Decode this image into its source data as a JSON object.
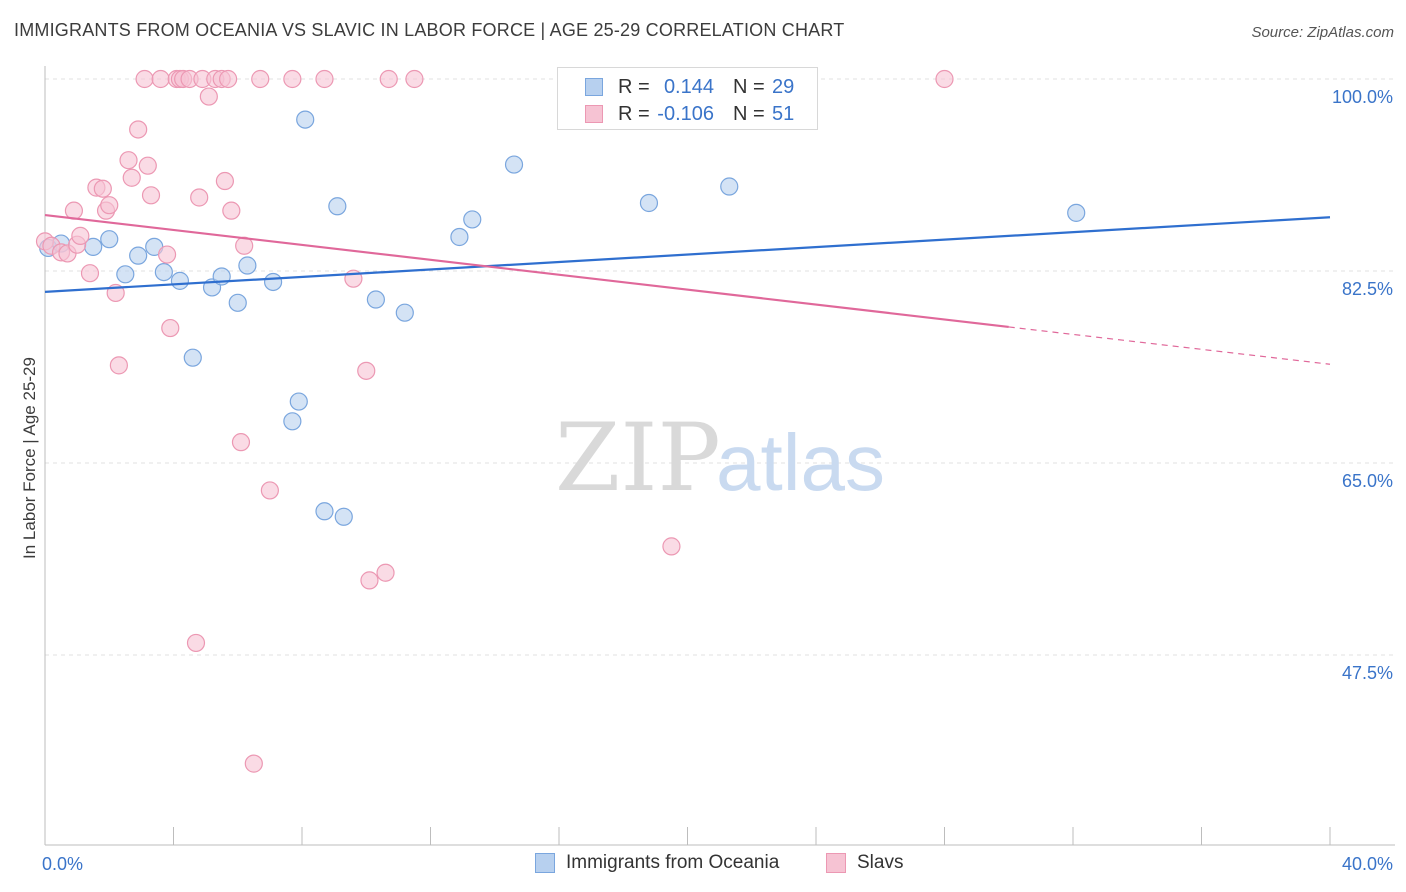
{
  "title": "IMMIGRANTS FROM OCEANIA VS SLAVIC IN LABOR FORCE | AGE 25-29 CORRELATION CHART",
  "source": "Source: ZipAtlas.com",
  "watermark": {
    "zip": "ZIP",
    "atlas": "atlas"
  },
  "colors": {
    "blue_fill": "#b7d0ef",
    "blue_stroke": "#7aa6de",
    "blue_line": "#2f6fcf",
    "pink_fill": "#f6c3d3",
    "pink_stroke": "#ec98b3",
    "pink_line": "#e0689a",
    "axis_text": "#3a74c9",
    "grid": "#e0e0e0"
  },
  "legend": {
    "rows": [
      {
        "r_label": "R =",
        "r_value": "0.144",
        "n_label": "N =",
        "n_value": "29"
      },
      {
        "r_label": "R =",
        "r_value": "-0.106",
        "n_label": "N =",
        "n_value": "51"
      }
    ]
  },
  "bottom_legend": [
    {
      "label": "Immigrants from Oceania"
    },
    {
      "label": "Slavs"
    }
  ],
  "chart_data": {
    "type": "scatter",
    "title": "IMMIGRANTS FROM OCEANIA VS SLAVIC IN LABOR FORCE | AGE 25-29 CORRELATION CHART",
    "xlabel": "",
    "ylabel": "In Labor Force | Age 25-29",
    "xlim": [
      0,
      40
    ],
    "ylim": [
      30,
      102
    ],
    "x_tick_labels": [
      {
        "value": 0,
        "label": "0.0%"
      },
      {
        "value": 40,
        "label": "40.0%"
      }
    ],
    "y_tick_labels": [
      {
        "value": 100,
        "label": "100.0%"
      },
      {
        "value": 82.5,
        "label": "82.5%"
      },
      {
        "value": 65,
        "label": "65.0%"
      },
      {
        "value": 47.5,
        "label": "47.5%"
      }
    ],
    "y_gridlines": [
      100,
      82.5,
      65,
      47.5
    ],
    "series": [
      {
        "name": "Immigrants from Oceania",
        "color_key": "blue",
        "trend": {
          "x0": 0,
          "y0": 80.6,
          "x1": 40,
          "y1": 87.4,
          "solid_to": 40
        },
        "points": [
          [
            0.1,
            84.6
          ],
          [
            0.5,
            85.0
          ],
          [
            1.5,
            84.7
          ],
          [
            2.0,
            85.4
          ],
          [
            2.5,
            82.2
          ],
          [
            2.9,
            83.9
          ],
          [
            3.4,
            84.7
          ],
          [
            3.7,
            82.4
          ],
          [
            4.2,
            81.6
          ],
          [
            4.6,
            74.6
          ],
          [
            5.2,
            81.0
          ],
          [
            5.5,
            82.0
          ],
          [
            6.0,
            79.6
          ],
          [
            6.3,
            83.0
          ],
          [
            7.1,
            81.5
          ],
          [
            7.7,
            68.8
          ],
          [
            7.9,
            70.6
          ],
          [
            8.1,
            96.3
          ],
          [
            8.7,
            60.6
          ],
          [
            9.1,
            88.4
          ],
          [
            9.3,
            60.1
          ],
          [
            10.3,
            79.9
          ],
          [
            11.2,
            78.7
          ],
          [
            12.9,
            85.6
          ],
          [
            13.3,
            87.2
          ],
          [
            14.6,
            92.2
          ],
          [
            18.8,
            88.7
          ],
          [
            21.3,
            90.2
          ],
          [
            32.1,
            87.8
          ]
        ]
      },
      {
        "name": "Slavs",
        "color_key": "pink",
        "trend": {
          "x0": 0,
          "y0": 87.6,
          "x1": 40,
          "y1": 74.0,
          "solid_to": 30
        },
        "points": [
          [
            0.0,
            85.2
          ],
          [
            0.2,
            84.8
          ],
          [
            0.5,
            84.2
          ],
          [
            0.7,
            84.1
          ],
          [
            0.9,
            88.0
          ],
          [
            1.0,
            84.9
          ],
          [
            1.1,
            85.7
          ],
          [
            1.4,
            82.3
          ],
          [
            1.6,
            90.1
          ],
          [
            1.8,
            90.0
          ],
          [
            1.9,
            88.0
          ],
          [
            2.0,
            88.5
          ],
          [
            2.2,
            80.5
          ],
          [
            2.3,
            73.9
          ],
          [
            2.6,
            92.6
          ],
          [
            2.7,
            91.0
          ],
          [
            2.9,
            95.4
          ],
          [
            3.1,
            100.0
          ],
          [
            3.2,
            92.1
          ],
          [
            3.3,
            89.4
          ],
          [
            3.6,
            100.0
          ],
          [
            3.8,
            84.0
          ],
          [
            3.9,
            77.3
          ],
          [
            4.1,
            100.0
          ],
          [
            4.2,
            100.0
          ],
          [
            4.3,
            100.0
          ],
          [
            4.5,
            100.0
          ],
          [
            4.7,
            48.6
          ],
          [
            4.8,
            89.2
          ],
          [
            4.9,
            100.0
          ],
          [
            5.1,
            98.4
          ],
          [
            5.3,
            100.0
          ],
          [
            5.5,
            100.0
          ],
          [
            5.6,
            90.7
          ],
          [
            5.7,
            100.0
          ],
          [
            5.8,
            88.0
          ],
          [
            6.1,
            66.9
          ],
          [
            6.2,
            84.8
          ],
          [
            6.5,
            37.6
          ],
          [
            6.7,
            100.0
          ],
          [
            7.0,
            62.5
          ],
          [
            7.7,
            100.0
          ],
          [
            8.7,
            100.0
          ],
          [
            9.6,
            81.8
          ],
          [
            10.0,
            73.4
          ],
          [
            10.1,
            54.3
          ],
          [
            10.7,
            100.0
          ],
          [
            11.5,
            100.0
          ],
          [
            10.6,
            55.0
          ],
          [
            19.5,
            57.4
          ],
          [
            28.0,
            100.0
          ]
        ]
      }
    ]
  }
}
